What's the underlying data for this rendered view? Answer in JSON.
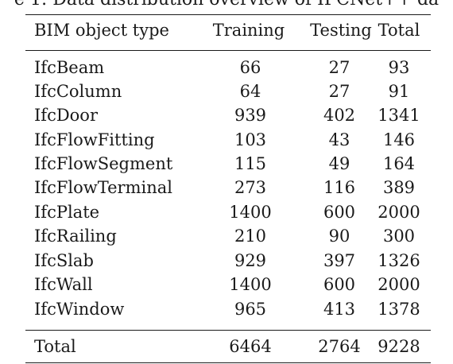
{
  "caption": "e 1: Data distribution overview of IFCNet++ da",
  "table": {
    "headers": [
      "BIM object type",
      "Training",
      "Testing",
      "Total"
    ],
    "rows": [
      {
        "type": "IfcBeam",
        "training": "66",
        "testing": "27",
        "total": "93"
      },
      {
        "type": "IfcColumn",
        "training": "64",
        "testing": "27",
        "total": "91"
      },
      {
        "type": "IfcDoor",
        "training": "939",
        "testing": "402",
        "total": "1341"
      },
      {
        "type": "IfcFlowFitting",
        "training": "103",
        "testing": "43",
        "total": "146"
      },
      {
        "type": "IfcFlowSegment",
        "training": "115",
        "testing": "49",
        "total": "164"
      },
      {
        "type": "IfcFlowTerminal",
        "training": "273",
        "testing": "116",
        "total": "389"
      },
      {
        "type": "IfcPlate",
        "training": "1400",
        "testing": "600",
        "total": "2000"
      },
      {
        "type": "IfcRailing",
        "training": "210",
        "testing": "90",
        "total": "300"
      },
      {
        "type": "IfcSlab",
        "training": "929",
        "testing": "397",
        "total": "1326"
      },
      {
        "type": "IfcWall",
        "training": "1400",
        "testing": "600",
        "total": "2000"
      },
      {
        "type": "IfcWindow",
        "training": "965",
        "testing": "413",
        "total": "1378"
      }
    ],
    "total_row": {
      "type": "Total",
      "training": "6464",
      "testing": "2764",
      "total": "9228"
    }
  }
}
